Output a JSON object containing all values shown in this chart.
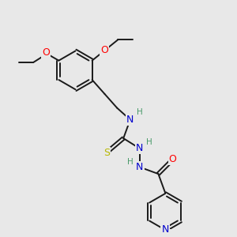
{
  "background_color": "#e8e8e8",
  "bond_color": "#1a1a1a",
  "atom_colors": {
    "O": "#ff0000",
    "N": "#0000cd",
    "S": "#b8b800",
    "H": "#4a9a6a",
    "C": "#1a1a1a"
  },
  "figsize": [
    3.0,
    3.0
  ],
  "dpi": 100,
  "xlim": [
    0,
    10
  ],
  "ylim": [
    0,
    10
  ]
}
